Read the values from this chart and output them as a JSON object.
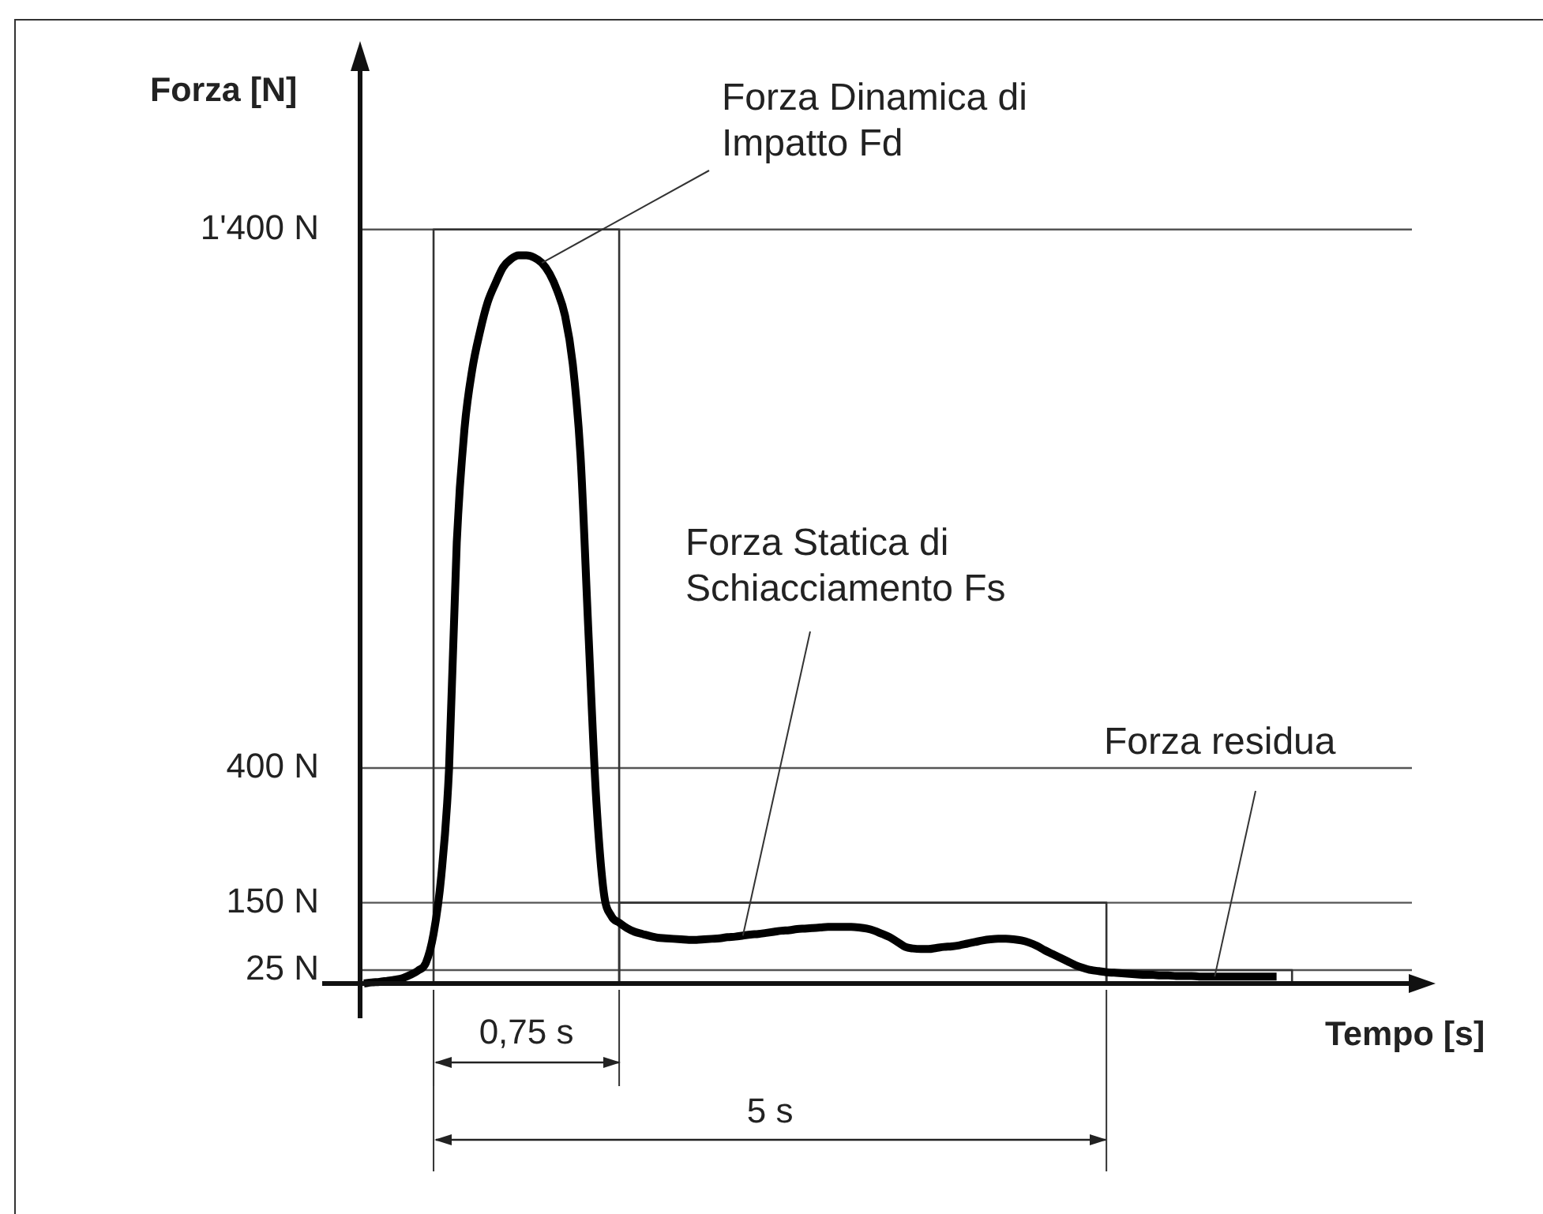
{
  "chart_data": {
    "type": "line",
    "xlabel": "Tempo [s]",
    "ylabel": "Forza [N]",
    "categories": [
      null,
      null,
      null,
      null,
      null,
      null,
      null,
      null,
      null,
      null,
      null,
      null,
      null,
      null,
      null,
      null,
      null,
      null,
      null,
      null,
      null,
      null,
      null,
      null,
      null,
      null,
      null,
      null,
      null,
      null,
      null,
      null,
      null,
      null,
      null,
      null,
      null,
      null,
      null,
      null,
      null,
      null,
      null,
      null,
      null,
      null,
      null,
      null,
      null,
      null,
      null,
      null,
      null,
      null,
      null,
      null,
      null,
      null,
      null,
      null,
      null,
      null,
      null,
      null,
      null,
      null,
      null,
      null,
      null,
      null,
      null,
      null,
      null,
      null,
      null,
      null,
      null,
      null,
      null,
      null,
      null,
      null,
      null,
      null,
      null,
      null,
      null,
      null,
      null,
      null,
      null,
      null,
      null,
      null,
      null,
      null,
      null,
      null,
      null,
      null,
      null,
      null,
      null,
      null,
      null,
      null,
      null,
      null,
      null,
      null,
      null,
      null,
      null,
      null,
      null,
      null,
      null,
      null,
      null,
      null,
      null,
      null,
      null,
      null,
      null,
      null,
      null,
      null,
      null,
      null,
      null,
      null,
      null,
      null,
      null,
      null
    ],
    "series": [
      {
        "color": "#000000",
        "values": [
          0,
          2,
          3,
          5,
          7,
          10,
          16,
          24,
          38,
          92,
          200,
          398,
          819,
          1030,
          1140,
          1210,
          1265,
          1300,
          1330,
          1345,
          1352,
          1352,
          1348,
          1338,
          1318,
          1286,
          1240,
          1150,
          980,
          660,
          350,
          170,
          125,
          113,
          103,
          96,
          92,
          88,
          85,
          84,
          83,
          82,
          81,
          81,
          82,
          83,
          84,
          86,
          87,
          89,
          91,
          92,
          94,
          96,
          98,
          99,
          101,
          102,
          103,
          104,
          105,
          105,
          105,
          105,
          104,
          102,
          98,
          92,
          86,
          77,
          68,
          65,
          64,
          64,
          66,
          68,
          69,
          71,
          74,
          77,
          80,
          82,
          83,
          83,
          82,
          80,
          76,
          70,
          62,
          55,
          48,
          41,
          34,
          29,
          25,
          23,
          21,
          20,
          19,
          18,
          17,
          16,
          16,
          15,
          15,
          14,
          14,
          14,
          13,
          13,
          13,
          13,
          13,
          13,
          13,
          13,
          13,
          13,
          13,
          null,
          null,
          null,
          null,
          null,
          null,
          null,
          null,
          null,
          null,
          null,
          null,
          null,
          null,
          null,
          null,
          null
        ]
      },
      {
        "type": "step",
        "color": "#333333",
        "values": [
          null,
          null,
          null,
          null,
          null,
          null,
          null,
          null,
          0,
          1400,
          1400,
          1400,
          1400,
          1400,
          1400,
          1400,
          1400,
          1400,
          1400,
          1400,
          1400,
          1400,
          1400,
          1400,
          1400,
          1400,
          1400,
          1400,
          1400,
          1400,
          1400,
          1400,
          1400,
          0,
          null,
          null,
          null,
          null,
          null,
          null,
          null,
          null,
          null,
          null,
          null,
          null,
          null,
          null,
          null,
          null,
          null,
          null,
          null,
          null,
          null,
          null,
          null,
          null,
          null,
          null,
          null,
          null,
          null,
          null,
          null,
          null,
          null,
          null,
          null,
          null,
          null,
          null,
          null,
          null,
          null,
          null,
          null,
          null,
          null,
          null,
          null,
          null,
          null,
          null,
          null,
          null,
          null,
          null,
          null,
          null,
          null,
          null,
          null,
          null,
          null,
          null,
          null,
          null,
          null,
          null,
          null,
          null,
          null,
          null,
          null,
          null,
          null,
          null,
          null,
          null,
          null,
          null,
          null,
          null,
          null,
          null,
          null,
          null,
          null,
          null,
          null,
          null,
          null,
          null,
          null,
          null,
          null,
          null,
          null,
          null,
          null,
          null,
          null,
          null,
          null,
          null
        ]
      },
      {
        "type": "step",
        "color": "#333333",
        "values": [
          null,
          null,
          null,
          null,
          null,
          null,
          null,
          null,
          null,
          null,
          null,
          null,
          null,
          null,
          null,
          null,
          null,
          null,
          null,
          null,
          null,
          null,
          null,
          null,
          null,
          null,
          null,
          null,
          null,
          null,
          null,
          null,
          0,
          150,
          150,
          150,
          150,
          150,
          150,
          150,
          150,
          150,
          150,
          150,
          150,
          150,
          150,
          150,
          150,
          150,
          150,
          150,
          150,
          150,
          150,
          150,
          150,
          150,
          150,
          150,
          150,
          150,
          150,
          150,
          150,
          150,
          150,
          150,
          150,
          150,
          150,
          150,
          150,
          150,
          150,
          150,
          150,
          150,
          150,
          150,
          150,
          150,
          150,
          150,
          150,
          150,
          150,
          150,
          150,
          150,
          150,
          150,
          150,
          150,
          150,
          150,
          0,
          null,
          null,
          null,
          null,
          null,
          null,
          null,
          null,
          null,
          null,
          null,
          null,
          null,
          null,
          null,
          null,
          null,
          null,
          null,
          null,
          null,
          null,
          null,
          null,
          null,
          null,
          null,
          null,
          null,
          null,
          null,
          null,
          null,
          null,
          null,
          null,
          null,
          null,
          null
        ]
      },
      {
        "type": "step",
        "color": "#333333",
        "values": [
          null,
          null,
          null,
          null,
          null,
          null,
          null,
          null,
          null,
          null,
          null,
          null,
          null,
          null,
          null,
          null,
          null,
          null,
          null,
          null,
          null,
          null,
          null,
          null,
          null,
          null,
          null,
          null,
          null,
          null,
          null,
          null,
          null,
          null,
          null,
          null,
          null,
          null,
          null,
          null,
          null,
          null,
          null,
          null,
          null,
          null,
          null,
          null,
          null,
          null,
          null,
          null,
          null,
          null,
          null,
          null,
          null,
          null,
          null,
          null,
          null,
          null,
          null,
          null,
          null,
          null,
          null,
          null,
          null,
          null,
          null,
          null,
          null,
          null,
          null,
          null,
          null,
          null,
          null,
          null,
          null,
          null,
          null,
          null,
          null,
          null,
          null,
          null,
          null,
          null,
          null,
          null,
          null,
          null,
          null,
          0,
          25,
          25,
          25,
          25,
          25,
          25,
          25,
          25,
          25,
          25,
          25,
          25,
          25,
          25,
          25,
          25,
          25,
          25,
          25,
          25,
          25,
          25,
          25,
          25,
          0,
          null,
          null,
          null,
          null,
          null,
          null,
          null,
          null,
          null,
          null,
          null,
          null,
          null,
          null,
          null
        ]
      }
    ],
    "ylim": [
      0,
      1700
    ],
    "yticks": [
      {
        "value": 25,
        "label": "25 N"
      },
      {
        "value": 150,
        "label": "150 N"
      },
      {
        "value": 400,
        "label": "400 N"
      },
      {
        "value": 1400,
        "label": "1'400 N"
      }
    ],
    "grid": "y",
    "annotations": [
      "Forza Dinamica di Impatto Fd",
      "Forza Statica di Schiacciamento Fs",
      "Forza residua",
      "0,75 s",
      "5 s"
    ]
  }
}
